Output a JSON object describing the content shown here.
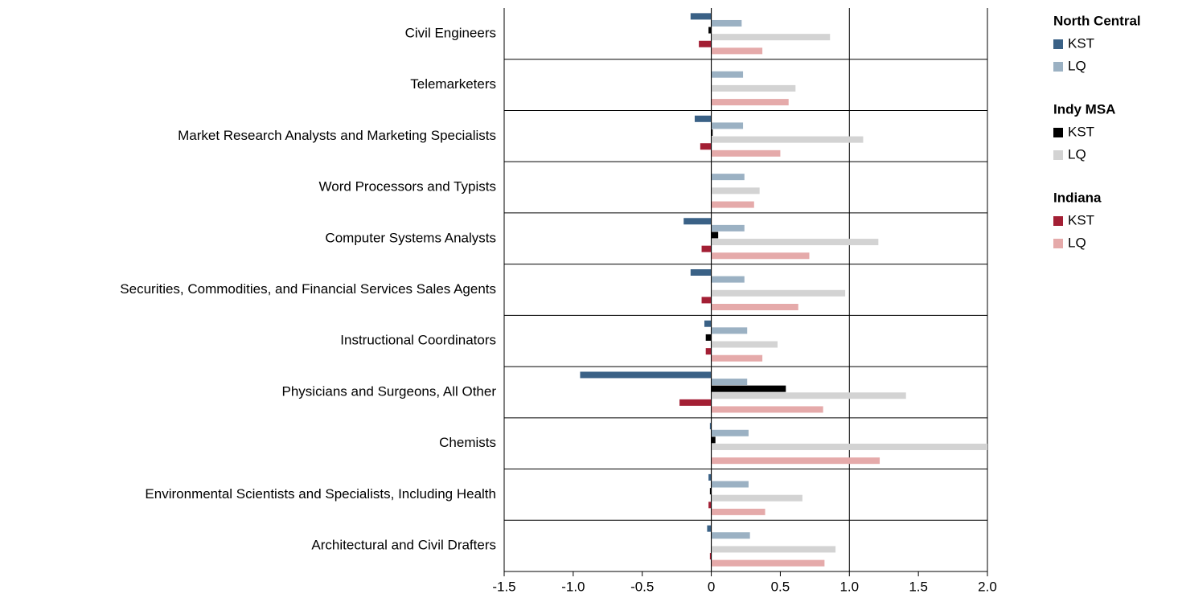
{
  "chart_data": {
    "type": "bar",
    "orientation": "horizontal",
    "categories": [
      "Civil Engineers",
      "Telemarketers",
      "Market Research Analysts and Marketing Specialists",
      "Word Processors and Typists",
      "Computer Systems Analysts",
      "Securities, Commodities, and Financial Services Sales Agents",
      "Instructional Coordinators",
      "Physicians and Surgeons, All Other",
      "Chemists",
      "Environmental Scientists and Specialists, Including Health",
      "Architectural and Civil Drafters"
    ],
    "groups": [
      {
        "name": "North Central",
        "series": [
          {
            "name": "KST",
            "color": "#3a6186",
            "values": [
              -0.15,
              0,
              -0.12,
              0,
              -0.2,
              -0.15,
              -0.05,
              -0.95,
              -0.01,
              -0.02,
              -0.03
            ]
          },
          {
            "name": "LQ",
            "color": "#9bb1c3",
            "values": [
              0.22,
              0.23,
              0.23,
              0.24,
              0.24,
              0.24,
              0.26,
              0.26,
              0.27,
              0.27,
              0.28
            ]
          }
        ]
      },
      {
        "name": "Indy MSA",
        "series": [
          {
            "name": "KST",
            "color": "#000000",
            "values": [
              -0.02,
              0,
              0.01,
              0,
              0.05,
              0,
              -0.04,
              0.54,
              0.03,
              -0.01,
              0
            ]
          },
          {
            "name": "LQ",
            "color": "#d3d3d3",
            "values": [
              0.86,
              0.61,
              1.1,
              0.35,
              1.21,
              0.97,
              0.48,
              1.41,
              2.0,
              0.66,
              0.9
            ]
          }
        ]
      },
      {
        "name": "Indiana",
        "series": [
          {
            "name": "KST",
            "color": "#a31f34",
            "values": [
              -0.09,
              0,
              -0.08,
              0,
              -0.07,
              -0.07,
              -0.04,
              -0.23,
              0,
              -0.02,
              -0.01
            ]
          },
          {
            "name": "LQ",
            "color": "#e5aaaa",
            "values": [
              0.37,
              0.56,
              0.5,
              0.31,
              0.71,
              0.63,
              0.37,
              0.81,
              1.22,
              0.39,
              0.82
            ]
          }
        ]
      }
    ],
    "xlim": [
      -1.5,
      2.0
    ],
    "xticks": [
      -1.5,
      {
        "value": -1,
        "label": "-1.0"
      },
      -0.5,
      0,
      0.5,
      {
        "value": 1,
        "label": "1.0"
      },
      1.5,
      {
        "value": 2,
        "label": "2.0"
      }
    ],
    "grid_x": [
      0,
      1,
      2
    ]
  }
}
